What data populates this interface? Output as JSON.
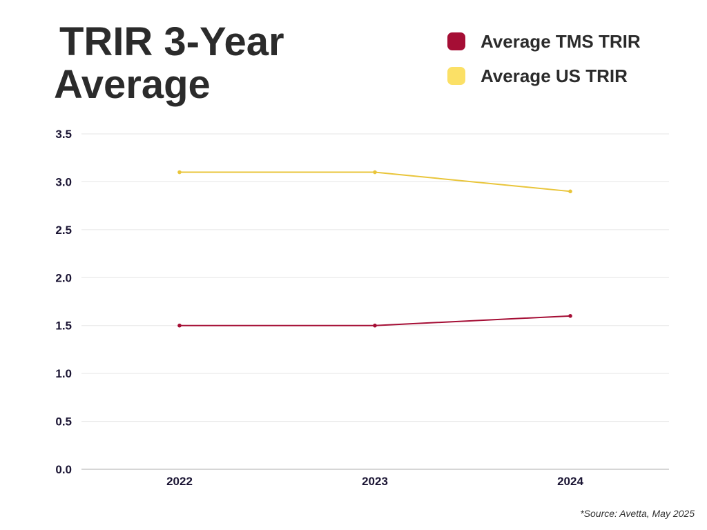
{
  "title_line1": "TRIR 3-Year",
  "title_line2": "Average",
  "source": "*Source: Avetta, May 2025",
  "chart_data": {
    "type": "line",
    "title": "TRIR 3-Year Average",
    "categories": [
      "2022",
      "2023",
      "2024"
    ],
    "series": [
      {
        "name": "Average TMS TRIR",
        "values": [
          1.5,
          1.5,
          1.6
        ],
        "color": "#a50e35"
      },
      {
        "name": "Average US TRIR",
        "values": [
          3.1,
          3.1,
          2.9
        ],
        "color": "#e9c53a"
      }
    ],
    "legend_swatch_colors": [
      "#a50e35",
      "#fbe066"
    ],
    "ylim": [
      0,
      3.5
    ],
    "yticks": [
      "0.0",
      "0.5",
      "1.0",
      "1.5",
      "2.0",
      "2.5",
      "3.0",
      "3.5"
    ],
    "grid": true,
    "legend_position": "top-right",
    "xlabel": "",
    "ylabel": ""
  }
}
